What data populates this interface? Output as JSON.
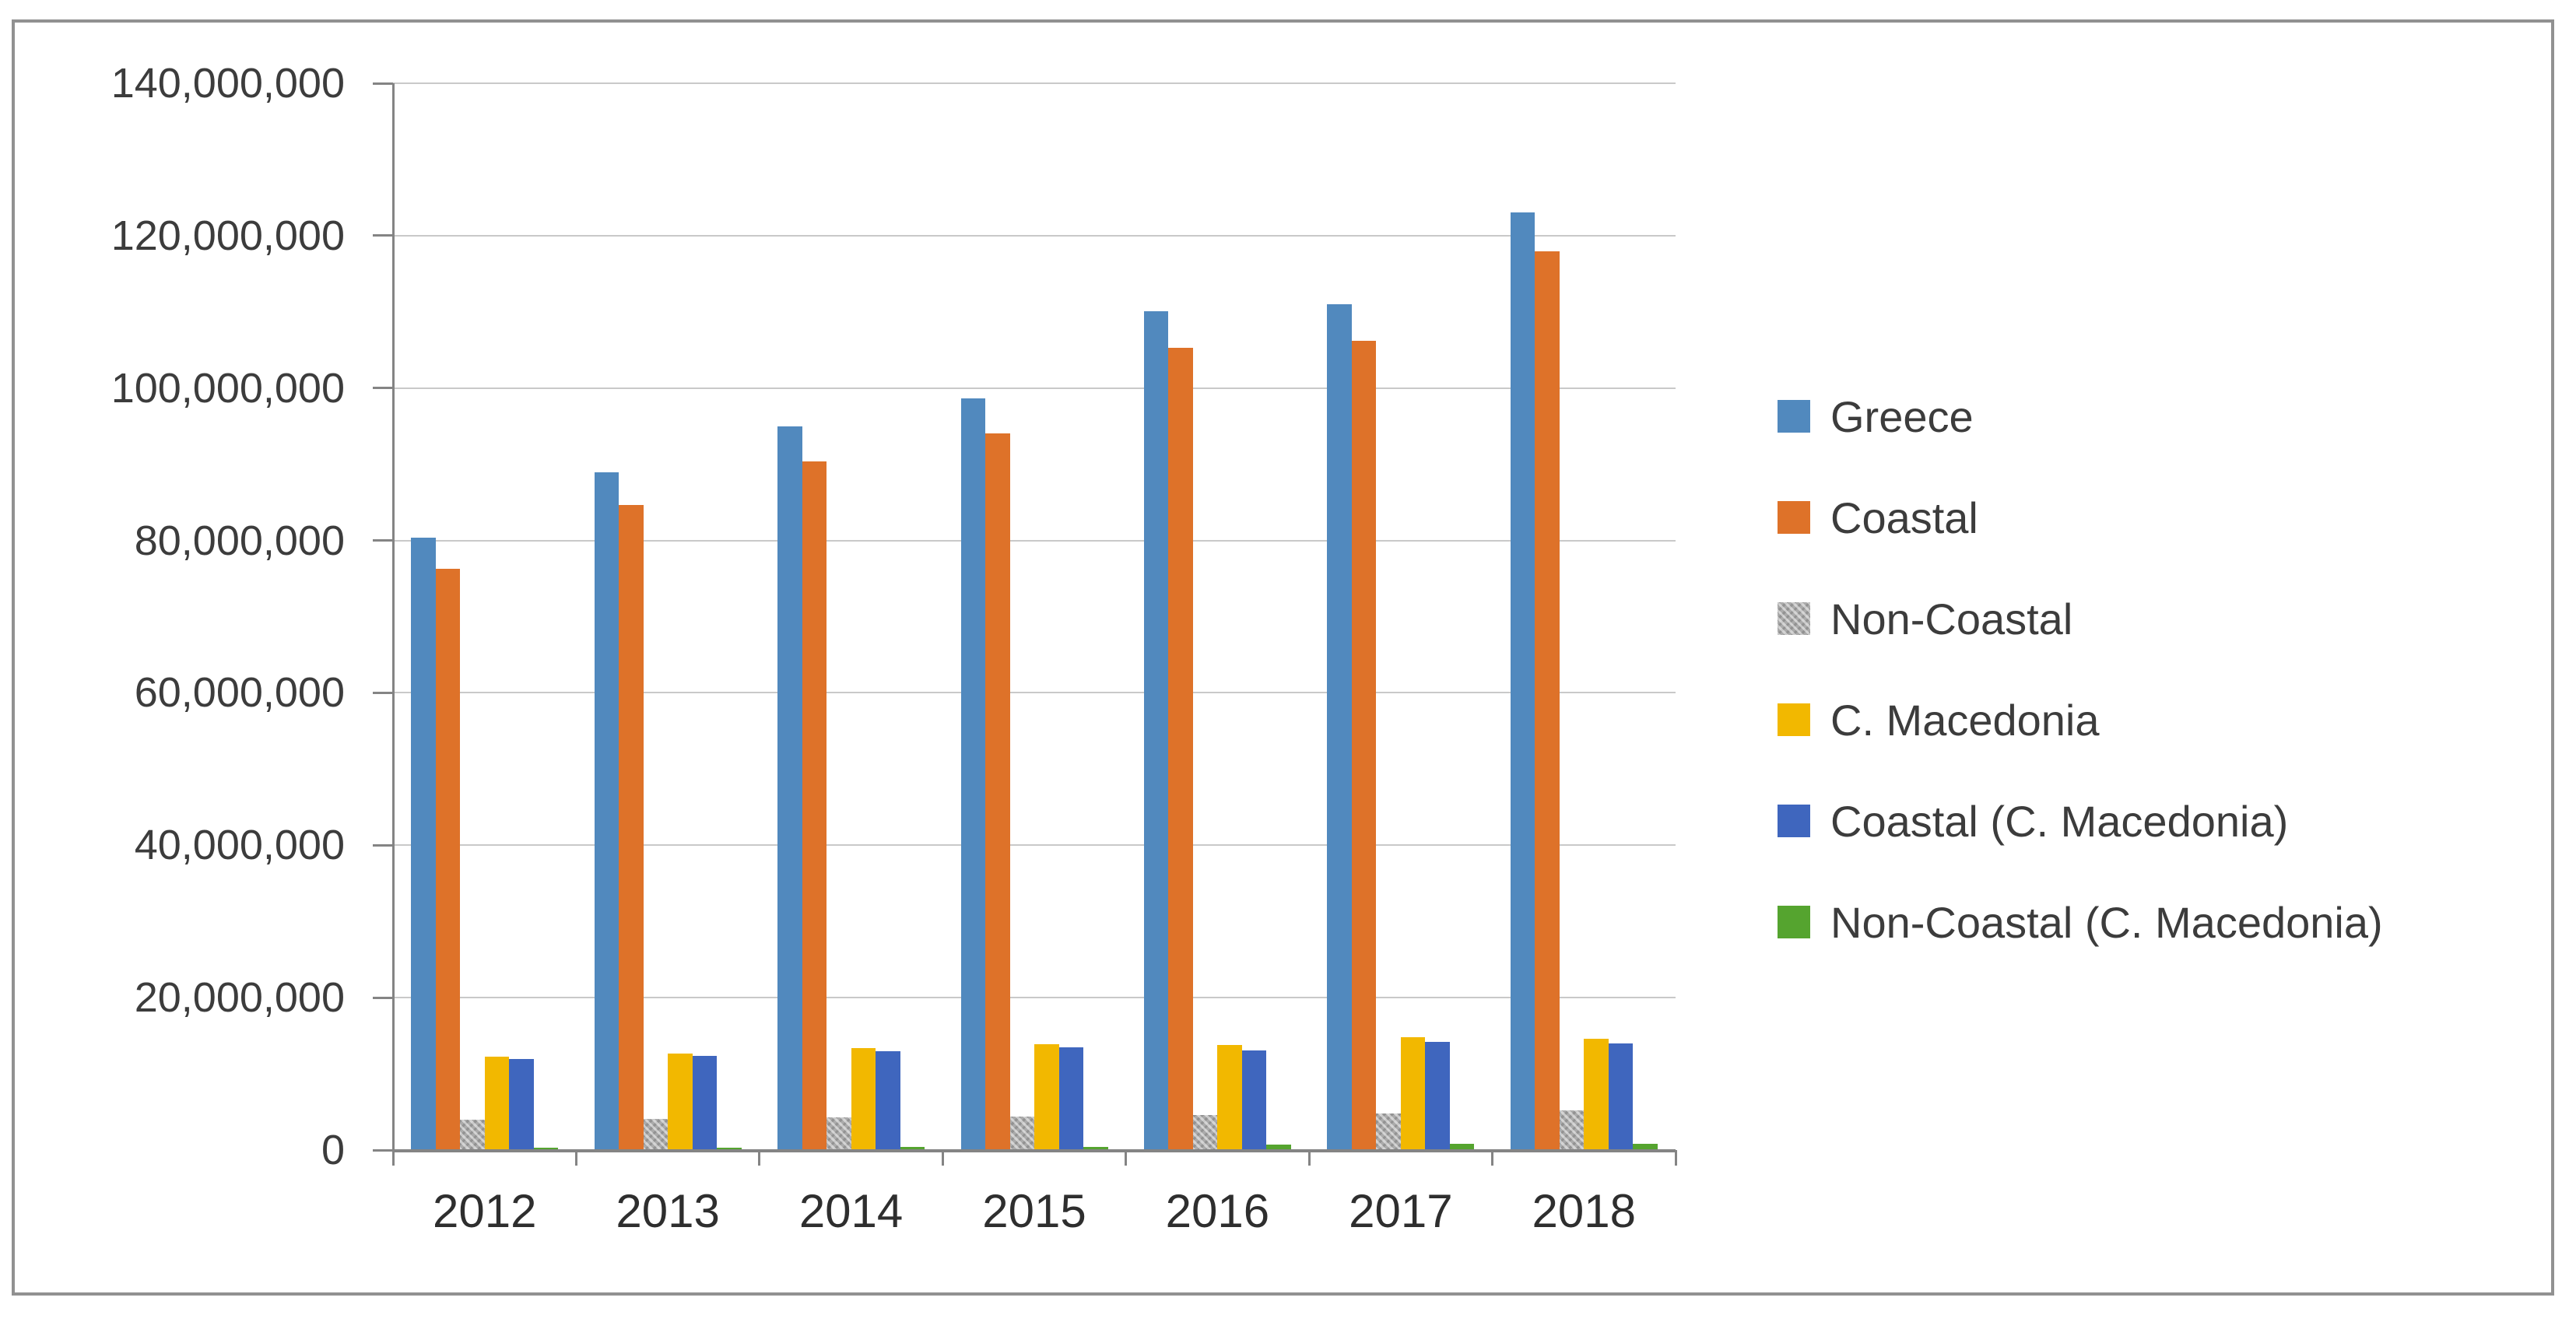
{
  "chart_data": {
    "type": "bar",
    "title": "",
    "categories": [
      "2012",
      "2013",
      "2014",
      "2015",
      "2016",
      "2017",
      "2018"
    ],
    "series": [
      {
        "name": "Greece",
        "color": "#5189BE",
        "pattern": false,
        "values": [
          80400000,
          88900000,
          95000000,
          98600000,
          110100000,
          111000000,
          123000000
        ]
      },
      {
        "name": "Coastal",
        "color": "#DE7229",
        "pattern": false,
        "values": [
          76300000,
          84700000,
          90400000,
          94000000,
          105300000,
          106200000,
          117900000
        ]
      },
      {
        "name": "Non-Coastal",
        "color": "#ABABAB",
        "pattern": true,
        "values": [
          4000000,
          4100000,
          4300000,
          4400000,
          4600000,
          4800000,
          5200000
        ]
      },
      {
        "name": "C. Macedonia",
        "color": "#F2B800",
        "pattern": false,
        "values": [
          12300000,
          12700000,
          13400000,
          13900000,
          13800000,
          14800000,
          14600000
        ]
      },
      {
        "name": "Coastal (C. Macedonia)",
        "color": "#3F66BE",
        "pattern": false,
        "values": [
          11900000,
          12400000,
          13000000,
          13500000,
          13100000,
          14200000,
          14000000
        ]
      },
      {
        "name": "Non-Coastal (C. Macedonia)",
        "color": "#55A42F",
        "pattern": false,
        "values": [
          350000,
          350000,
          400000,
          450000,
          700000,
          800000,
          800000
        ]
      }
    ],
    "xlabel": "",
    "ylabel": "",
    "ylim": [
      0,
      140000000
    ],
    "ytick_step": 20000000,
    "ytick_labels": [
      "0",
      "20,000,000",
      "40,000,000",
      "60,000,000",
      "80,000,000",
      "100,000,000",
      "120,000,000",
      "140,000,000"
    ],
    "grid": true,
    "legend_position": "right",
    "colors": {
      "axis": "#848484",
      "gridline": "#c9c9c9",
      "text": "#3c3c3c",
      "frame_border": "#919191",
      "background": "#ffffff"
    }
  }
}
